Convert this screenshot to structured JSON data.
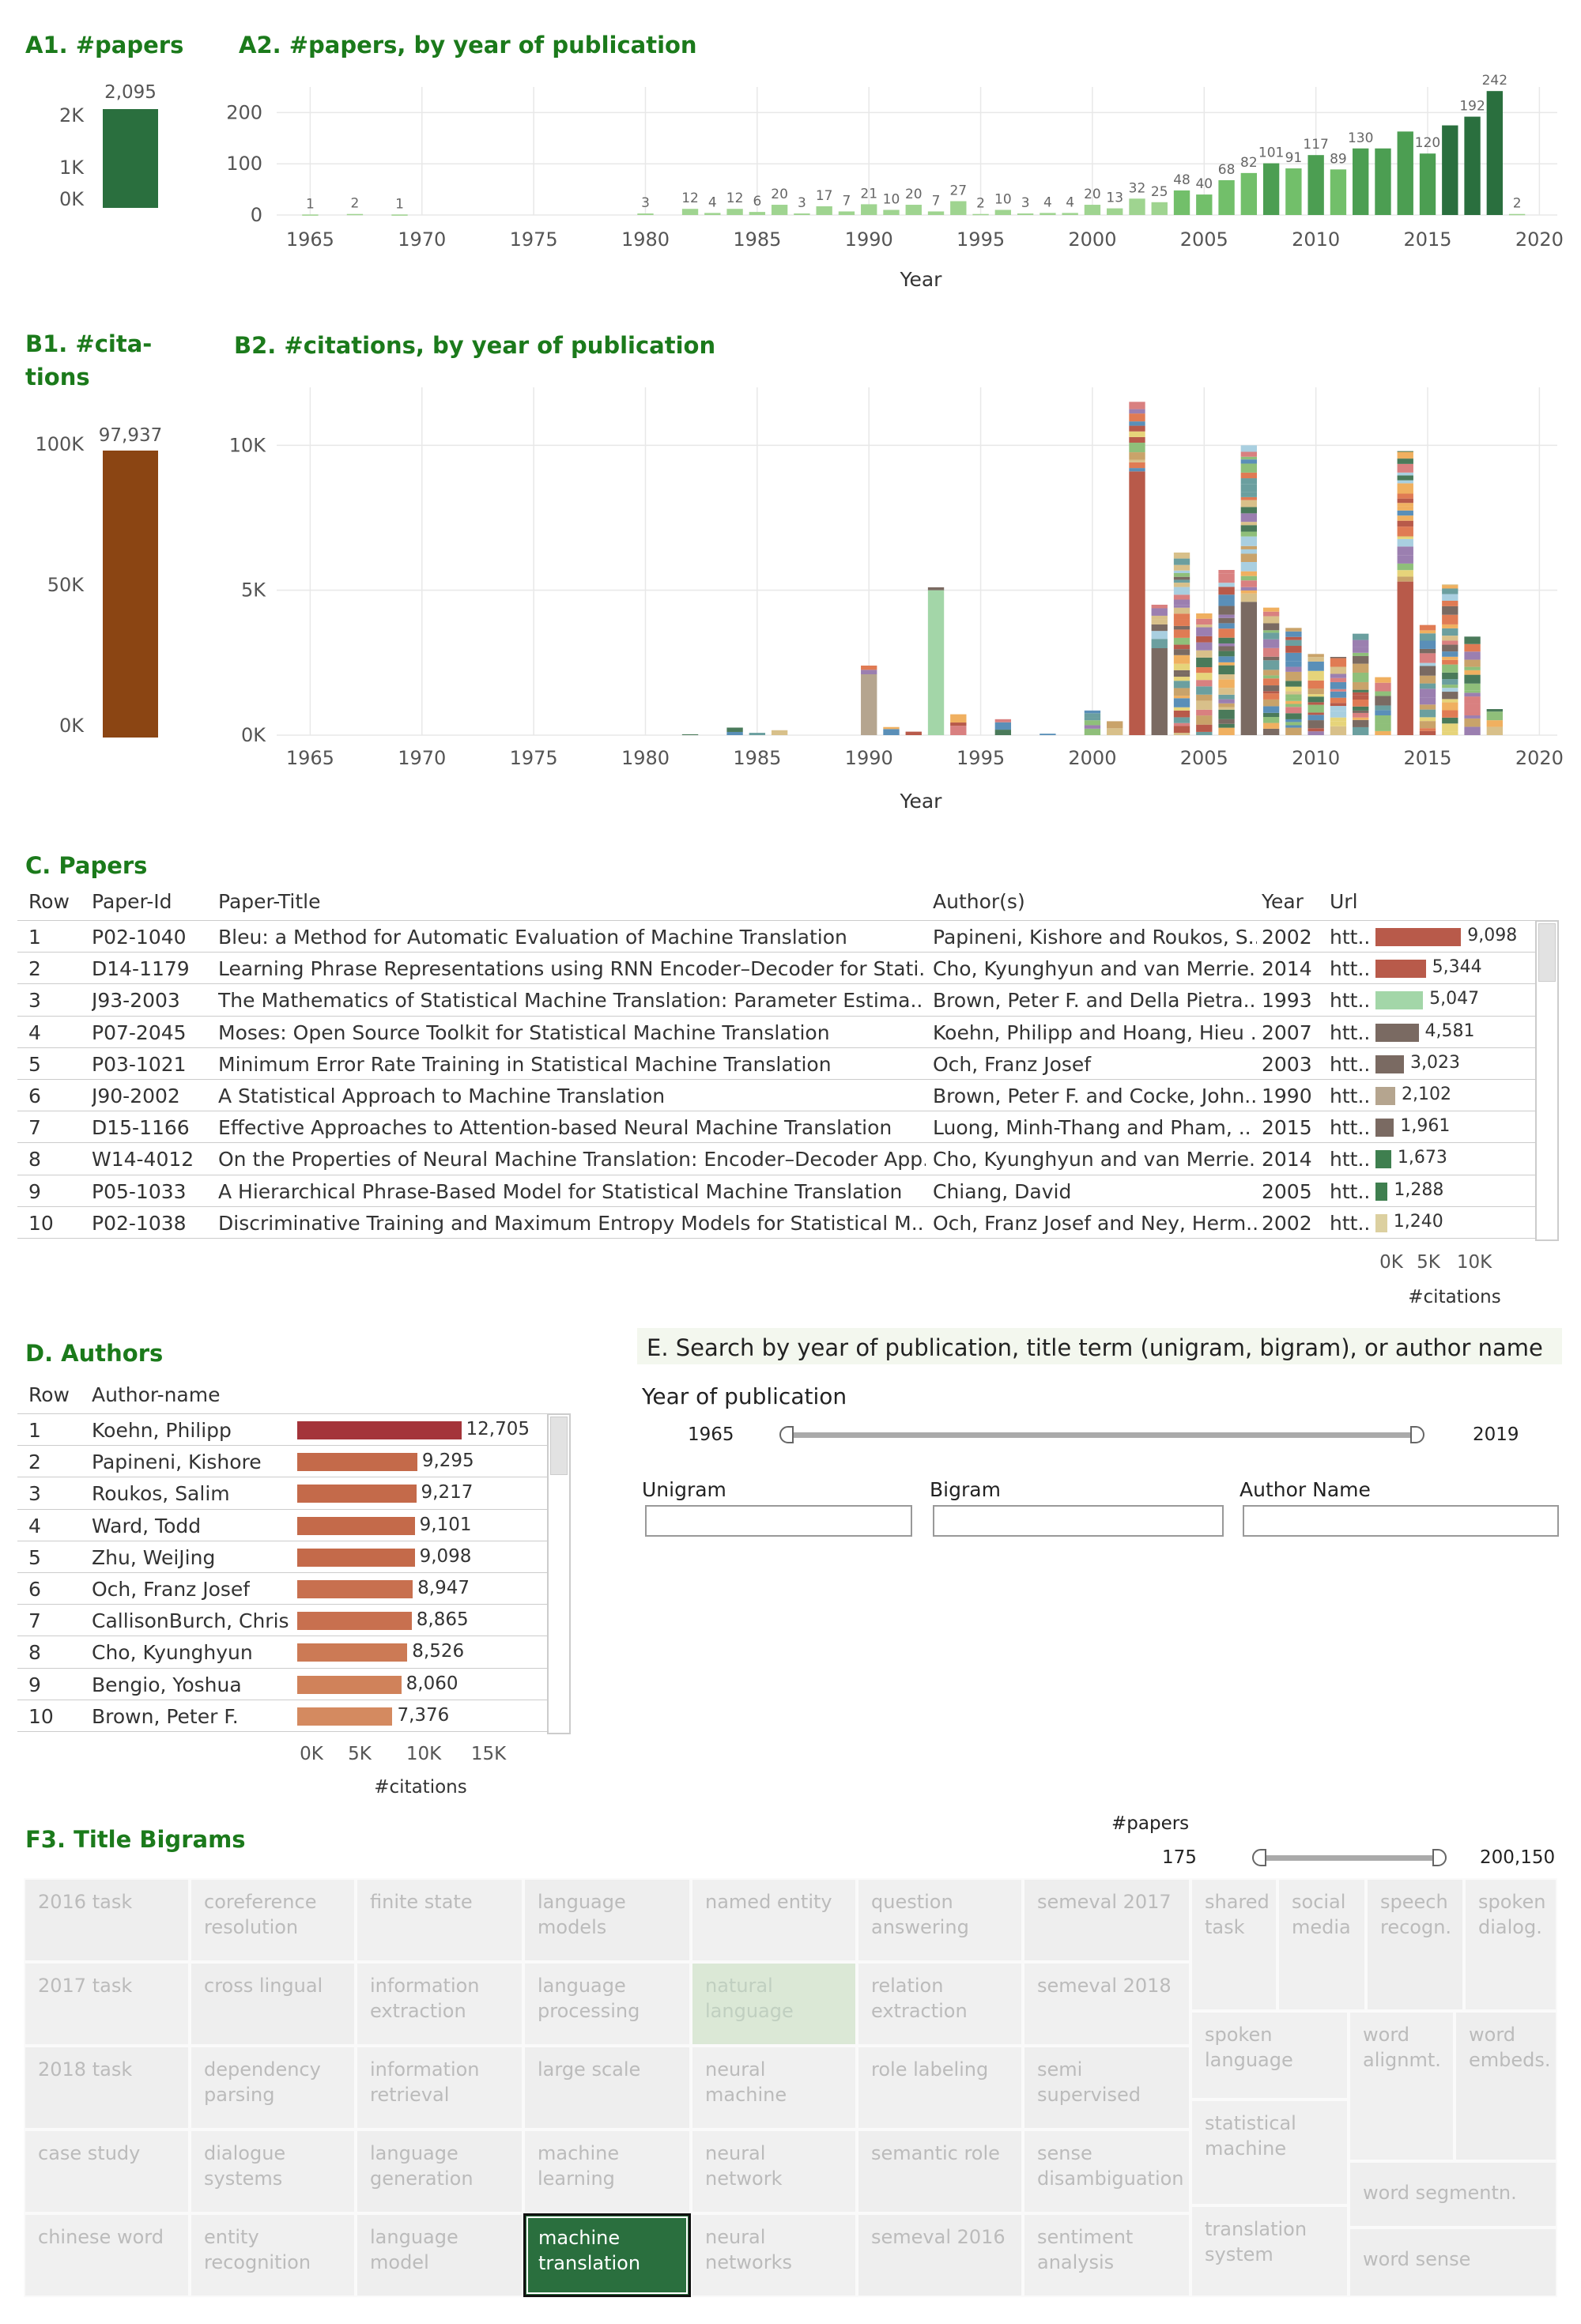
{
  "sections": {
    "a1": "A1. #papers",
    "a2": "A2. #papers, by year of publication",
    "b1_line1": "B1. #cita-",
    "b1_line2": "tions",
    "b2": "B2. #citations, by year of publication",
    "c": "C. Papers",
    "d": "D. Authors",
    "e": "E. Search by year of publication, title term (unigram, bigram), or  author name",
    "f3": "F3. Title Bigrams"
  },
  "colors": {
    "green_dark": "#2a6f3e",
    "brown": "#8b4513",
    "accent_green": "#1b7a1b"
  },
  "a1": {
    "value": 2095,
    "label": "2,095",
    "ticks": [
      "2K",
      "1K",
      "0K"
    ]
  },
  "a2": {
    "xlabel": "Year",
    "xticks": [
      "1965",
      "1970",
      "1975",
      "1980",
      "1985",
      "1990",
      "1995",
      "2000",
      "2005",
      "2010",
      "2015",
      "2020"
    ],
    "yticks": [
      "200",
      "100",
      "0"
    ]
  },
  "chart_data": [
    {
      "type": "bar",
      "title": "A2. #papers, by year of publication",
      "xlabel": "Year",
      "ylim": [
        0,
        250
      ],
      "x": [
        1965,
        1967,
        1969,
        1980,
        1982,
        1983,
        1984,
        1985,
        1986,
        1987,
        1988,
        1989,
        1990,
        1991,
        1992,
        1993,
        1994,
        1995,
        1996,
        1997,
        1998,
        1999,
        2000,
        2001,
        2002,
        2003,
        2004,
        2005,
        2006,
        2007,
        2008,
        2009,
        2010,
        2011,
        2012,
        2013,
        2014,
        2015,
        2016,
        2017,
        2018,
        2019
      ],
      "values": [
        1,
        2,
        1,
        3,
        12,
        4,
        12,
        6,
        20,
        3,
        17,
        7,
        21,
        10,
        20,
        7,
        27,
        2,
        10,
        3,
        4,
        4,
        20,
        13,
        32,
        25,
        48,
        40,
        68,
        82,
        101,
        91,
        117,
        89,
        130,
        130,
        163,
        120,
        175,
        192,
        242,
        2
      ],
      "labels": [
        "1",
        "2",
        "1",
        "3",
        "12",
        "4",
        "12",
        "6",
        "20",
        "3",
        "17",
        "7",
        "21",
        "10",
        "20",
        "7",
        "27",
        "2",
        "10",
        "3",
        "4",
        "4",
        "20",
        "13",
        "32",
        "25",
        "48",
        "40",
        "68",
        "82",
        "101",
        "91",
        "117",
        "89",
        "130",
        "",
        "",
        "120",
        "",
        "192",
        "242",
        "2"
      ]
    },
    {
      "type": "bar",
      "title": "B2. #citations, by year of publication",
      "xlabel": "Year",
      "ylim": [
        0,
        12000
      ],
      "x": [
        1982,
        1984,
        1985,
        1986,
        1990,
        1991,
        1992,
        1993,
        1994,
        1996,
        1998,
        2000,
        2001,
        2002,
        2003,
        2004,
        2005,
        2006,
        2007,
        2008,
        2009,
        2010,
        2011,
        2012,
        2013,
        2014,
        2015,
        2016,
        2017,
        2018
      ],
      "values": [
        30,
        260,
        80,
        170,
        2400,
        280,
        120,
        5100,
        720,
        550,
        50,
        850,
        480,
        11500,
        4500,
        6300,
        4200,
        5700,
        10000,
        4400,
        3700,
        2800,
        2700,
        3500,
        2000,
        9800,
        3800,
        5200,
        3400,
        900
      ]
    }
  ],
  "b1": {
    "value": 97937,
    "label": "97,937",
    "ticks": [
      "100K",
      "50K",
      "0K"
    ]
  },
  "b2": {
    "xlabel": "Year",
    "xticks": [
      "1965",
      "1970",
      "1975",
      "1980",
      "1985",
      "1990",
      "1995",
      "2000",
      "2005",
      "2010",
      "2015",
      "2020"
    ],
    "yticks": [
      "10K",
      "5K",
      "0K"
    ]
  },
  "papers": {
    "headers": [
      "Row",
      "Paper-Id",
      "Paper-Title",
      "Author(s)",
      "Year",
      "Url"
    ],
    "axis_ticks": [
      "0K",
      "5K",
      "10K"
    ],
    "axis_label": "#citations",
    "rows": [
      {
        "row": "1",
        "id": "P02-1040",
        "title": "Bleu: a Method for Automatic Evaluation of Machine Translation",
        "authors": "Papineni, Kishore and Roukos, S..",
        "year": "2002",
        "url": "htt..",
        "cit": 9098,
        "cit_label": "9,098",
        "color": "#b85a4a"
      },
      {
        "row": "2",
        "id": "D14-1179",
        "title": "Learning Phrase Representations using RNN Encoder–Decoder for Stati..",
        "authors": "Cho, Kyunghyun and van Merrie..",
        "year": "2014",
        "url": "htt..",
        "cit": 5344,
        "cit_label": "5,344",
        "color": "#b85a4a"
      },
      {
        "row": "3",
        "id": "J93-2003",
        "title": "The Mathematics of Statistical Machine Translation: Parameter Estima..",
        "authors": "Brown, Peter F. and Della Pietra..",
        "year": "1993",
        "url": "htt..",
        "cit": 5047,
        "cit_label": "5,047",
        "color": "#a3d6a8"
      },
      {
        "row": "4",
        "id": "P07-2045",
        "title": "Moses: Open Source Toolkit for Statistical Machine Translation",
        "authors": "Koehn, Philipp and Hoang, Hieu ..",
        "year": "2007",
        "url": "htt..",
        "cit": 4581,
        "cit_label": "4,581",
        "color": "#7a6a62"
      },
      {
        "row": "5",
        "id": "P03-1021",
        "title": "Minimum Error Rate Training in Statistical Machine Translation",
        "authors": "Och, Franz Josef",
        "year": "2003",
        "url": "htt..",
        "cit": 3023,
        "cit_label": "3,023",
        "color": "#7a6a62"
      },
      {
        "row": "6",
        "id": "J90-2002",
        "title": "A Statistical Approach to Machine Translation",
        "authors": "Brown, Peter F. and Cocke, John..",
        "year": "1990",
        "url": "htt..",
        "cit": 2102,
        "cit_label": "2,102",
        "color": "#b5a58f"
      },
      {
        "row": "7",
        "id": "D15-1166",
        "title": "Effective Approaches to Attention-based Neural Machine Translation",
        "authors": "Luong, Minh-Thang and Pham, ..",
        "year": "2015",
        "url": "htt..",
        "cit": 1961,
        "cit_label": "1,961",
        "color": "#7a6a62"
      },
      {
        "row": "8",
        "id": "W14-4012",
        "title": "On the Properties of Neural Machine Translation: Encoder–Decoder App..",
        "authors": "Cho, Kyunghyun and van Merrie..",
        "year": "2014",
        "url": "htt..",
        "cit": 1673,
        "cit_label": "1,673",
        "color": "#3f7f4f"
      },
      {
        "row": "9",
        "id": "P05-1033",
        "title": "A Hierarchical Phrase-Based Model for Statistical Machine Translation",
        "authors": "Chiang, David",
        "year": "2005",
        "url": "htt..",
        "cit": 1288,
        "cit_label": "1,288",
        "color": "#3f7f4f"
      },
      {
        "row": "10",
        "id": "P02-1038",
        "title": "Discriminative Training and Maximum Entropy Models for Statistical M..",
        "authors": "Och, Franz Josef and Ney, Herm..",
        "year": "2002",
        "url": "htt..",
        "cit": 1240,
        "cit_label": "1,240",
        "color": "#dcd0a0"
      }
    ]
  },
  "authors": {
    "headers": [
      "Row",
      "Author-name"
    ],
    "axis_ticks": [
      "0K",
      "5K",
      "10K",
      "15K"
    ],
    "axis_label": "#citations",
    "rows": [
      {
        "row": "1",
        "name": "Koehn, Philipp",
        "cit": 12705,
        "cit_label": "12,705",
        "color": "#a4343a"
      },
      {
        "row": "2",
        "name": "Papineni, Kishore",
        "cit": 9295,
        "cit_label": "9,295",
        "color": "#c46a4a"
      },
      {
        "row": "3",
        "name": "Roukos, Salim",
        "cit": 9217,
        "cit_label": "9,217",
        "color": "#c46a4a"
      },
      {
        "row": "4",
        "name": "Ward, Todd",
        "cit": 9101,
        "cit_label": "9,101",
        "color": "#c46a4a"
      },
      {
        "row": "5",
        "name": "Zhu, WeiJing",
        "cit": 9098,
        "cit_label": "9,098",
        "color": "#c46a4a"
      },
      {
        "row": "6",
        "name": "Och, Franz Josef",
        "cit": 8947,
        "cit_label": "8,947",
        "color": "#c8704f"
      },
      {
        "row": "7",
        "name": "CallisonBurch, Chris",
        "cit": 8865,
        "cit_label": "8,865",
        "color": "#c8704f"
      },
      {
        "row": "8",
        "name": "Cho, Kyunghyun",
        "cit": 8526,
        "cit_label": "8,526",
        "color": "#cc7a55"
      },
      {
        "row": "9",
        "name": "Bengio, Yoshua",
        "cit": 8060,
        "cit_label": "8,060",
        "color": "#d0825a"
      },
      {
        "row": "10",
        "name": "Brown, Peter F.",
        "cit": 7376,
        "cit_label": "7,376",
        "color": "#d48a60"
      }
    ]
  },
  "search": {
    "year_label": "Year of publication",
    "year_min": "1965",
    "year_max": "2019",
    "unigram_label": "Unigram",
    "bigram_label": "Bigram",
    "author_label": "Author Name",
    "unigram_value": "",
    "bigram_value": "",
    "author_value": ""
  },
  "bigrams": {
    "papers_label": "#papers",
    "range_min": "175",
    "range_max": "200,150",
    "tiles": [
      {
        "t": "2016 task"
      },
      {
        "t": "coreference\nresolution"
      },
      {
        "t": "finite state"
      },
      {
        "t": "language\nmodels"
      },
      {
        "t": "named entity"
      },
      {
        "t": "question\nanswering"
      },
      {
        "t": "semeval 2017"
      },
      {
        "t": "shared\ntask"
      },
      {
        "t": "social\nmedia"
      },
      {
        "t": "speech\nrecogn."
      },
      {
        "t": "spoken\ndialog."
      },
      {
        "t": "2017 task"
      },
      {
        "t": "cross lingual"
      },
      {
        "t": "information\nextraction"
      },
      {
        "t": "language\nprocessing"
      },
      {
        "t": "natural\nlanguage"
      },
      {
        "t": "relation\nextraction"
      },
      {
        "t": "semeval 2018"
      },
      {
        "t": "2018 task"
      },
      {
        "t": "dependency\nparsing"
      },
      {
        "t": "information\nretrieval"
      },
      {
        "t": "large scale"
      },
      {
        "t": "neural machine"
      },
      {
        "t": "role labeling"
      },
      {
        "t": "semi\nsupervised"
      },
      {
        "t": "spoken\nlanguage"
      },
      {
        "t": "word\nalignmt."
      },
      {
        "t": "word\nembeds."
      },
      {
        "t": "case study"
      },
      {
        "t": "dialogue\nsystems"
      },
      {
        "t": "language\ngeneration"
      },
      {
        "t": "machine\nlearning"
      },
      {
        "t": "neural network"
      },
      {
        "t": "semantic role"
      },
      {
        "t": "sense\ndisambiguation"
      },
      {
        "t": "statistical\nmachine"
      },
      {
        "t": "word segmentn."
      },
      {
        "t": "chinese word"
      },
      {
        "t": "entity\nrecognition"
      },
      {
        "t": "language model"
      },
      {
        "t": "machine\ntranslation"
      },
      {
        "t": "neural\nnetworks"
      },
      {
        "t": "semeval 2016"
      },
      {
        "t": "sentiment\nanalysis"
      },
      {
        "t": "translation\nsystem"
      },
      {
        "t": "word sense"
      }
    ]
  }
}
